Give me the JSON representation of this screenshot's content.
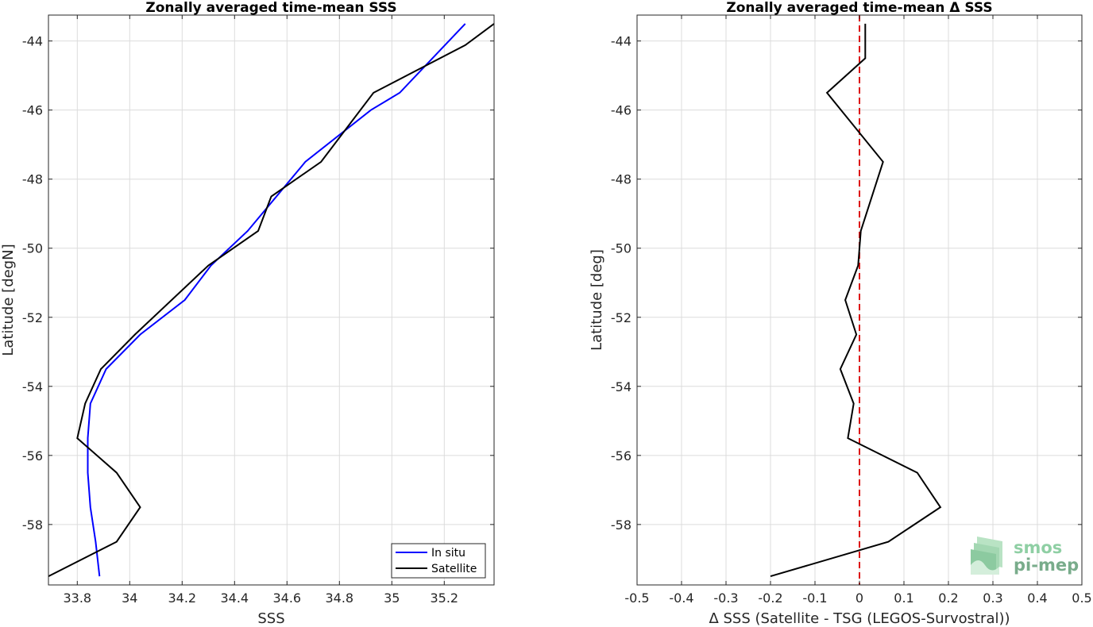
{
  "colors": {
    "in_situ": "#0000ff",
    "satellite": "#000000",
    "zero_line": "#dd1111",
    "grid": "#dcdcdc",
    "axis": "#262626",
    "logo_top": "#8fcfa4",
    "logo_bottom": "#79ac8b"
  },
  "logo": {
    "line1": "smos",
    "line2": "pi-mep",
    "icon": "layered-wave-logo-icon"
  },
  "chart_data": [
    {
      "type": "line",
      "title": "Zonally averaged time-mean SSS",
      "xlabel": "SSS",
      "ylabel": "Latitude [degN]",
      "xlim": [
        33.69,
        35.39
      ],
      "ylim": [
        -59.75,
        -43.25
      ],
      "xticks": [
        33.8,
        34.0,
        34.2,
        34.4,
        34.6,
        34.8,
        35.0,
        35.2
      ],
      "xtick_labels": [
        "33.8",
        "34",
        "34.2",
        "34.4",
        "34.6",
        "34.8",
        "35",
        "35.2"
      ],
      "yticks": [
        -58,
        -56,
        -54,
        -52,
        -50,
        -48,
        -46,
        -44
      ],
      "ytick_labels": [
        "-58",
        "-56",
        "-54",
        "-52",
        "-50",
        "-48",
        "-46",
        "-44"
      ],
      "grid": true,
      "legend_position": "bottom-right",
      "series": [
        {
          "name": "In situ",
          "color": "in_situ",
          "x": [
            35.28,
            35.03,
            34.92,
            34.67,
            34.45,
            34.31,
            34.21,
            34.04,
            33.91,
            33.85,
            33.84,
            33.84,
            33.85,
            33.87,
            33.885
          ],
          "y": [
            -43.5,
            -45.5,
            -46.0,
            -47.5,
            -49.5,
            -50.5,
            -51.5,
            -52.5,
            -53.5,
            -54.5,
            -55.5,
            -56.5,
            -57.5,
            -58.5,
            -59.5
          ]
        },
        {
          "name": "Satellite",
          "color": "satellite",
          "x": [
            35.39,
            35.28,
            34.93,
            34.73,
            34.54,
            34.49,
            34.3,
            34.16,
            34.02,
            33.89,
            33.83,
            33.8,
            33.95,
            34.04,
            33.95,
            33.69
          ],
          "y": [
            -43.5,
            -44.12,
            -45.5,
            -47.5,
            -48.5,
            -49.5,
            -50.5,
            -51.5,
            -52.5,
            -53.5,
            -54.5,
            -55.5,
            -56.5,
            -57.5,
            -58.5,
            -59.5
          ]
        }
      ]
    },
    {
      "type": "line",
      "title": "Zonally averaged time-mean Δ SSS",
      "xlabel": "Δ SSS (Satellite - TSG (LEGOS-Survostral))",
      "ylabel": "Latitude [deg]",
      "xlim": [
        -0.5,
        0.5
      ],
      "ylim": [
        -59.75,
        -43.25
      ],
      "xticks": [
        -0.5,
        -0.4,
        -0.3,
        -0.2,
        -0.1,
        0,
        0.1,
        0.2,
        0.3,
        0.4,
        0.5
      ],
      "xtick_labels": [
        "-0.5",
        "-0.4",
        "-0.3",
        "-0.2",
        "-0.1",
        "0",
        "0.1",
        "0.2",
        "0.3",
        "0.4",
        "0.5"
      ],
      "yticks": [
        -58,
        -56,
        -54,
        -52,
        -50,
        -48,
        -46,
        -44
      ],
      "ytick_labels": [
        "-58",
        "-56",
        "-54",
        "-52",
        "-50",
        "-48",
        "-46",
        "-44"
      ],
      "grid": true,
      "reference_line": {
        "x": 0,
        "style": "dashed",
        "color": "zero_line"
      },
      "series": [
        {
          "color": "satellite",
          "x": [
            0.013,
            0.013,
            -0.073,
            0.053,
            0.003,
            -0.003,
            -0.032,
            -0.007,
            -0.043,
            -0.013,
            -0.026,
            0.13,
            0.182,
            0.065,
            -0.2
          ],
          "y": [
            -43.5,
            -44.5,
            -45.5,
            -47.5,
            -49.5,
            -50.5,
            -51.5,
            -52.5,
            -53.5,
            -54.5,
            -55.5,
            -56.5,
            -57.5,
            -58.5,
            -59.5
          ]
        }
      ]
    }
  ]
}
